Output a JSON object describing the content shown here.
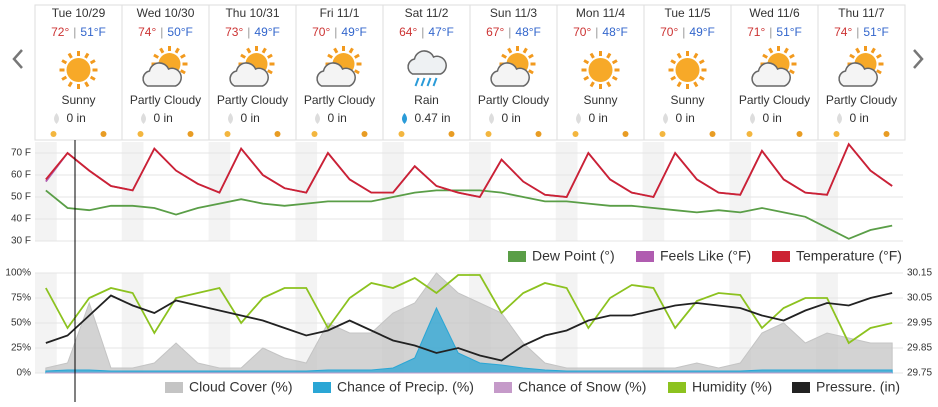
{
  "days": [
    {
      "name": "Tue 10/29",
      "high": "72°",
      "low": "51°F",
      "condition": "Sunny",
      "precip": "0 in"
    },
    {
      "name": "Wed 10/30",
      "high": "74°",
      "low": "50°F",
      "condition": "Partly Cloudy",
      "precip": "0 in"
    },
    {
      "name": "Thu 10/31",
      "high": "73°",
      "low": "49°F",
      "condition": "Partly Cloudy",
      "precip": "0 in"
    },
    {
      "name": "Fri 11/1",
      "high": "70°",
      "low": "49°F",
      "condition": "Partly Cloudy",
      "precip": "0 in"
    },
    {
      "name": "Sat 11/2",
      "high": "64°",
      "low": "47°F",
      "condition": "Rain",
      "precip": "0.47 in"
    },
    {
      "name": "Sun 11/3",
      "high": "67°",
      "low": "48°F",
      "condition": "Partly Cloudy",
      "precip": "0 in"
    },
    {
      "name": "Mon 11/4",
      "high": "70°",
      "low": "48°F",
      "condition": "Sunny",
      "precip": "0 in"
    },
    {
      "name": "Tue 11/5",
      "high": "70°",
      "low": "49°F",
      "condition": "Sunny",
      "precip": "0 in"
    },
    {
      "name": "Wed 11/6",
      "high": "71°",
      "low": "51°F",
      "condition": "Partly Cloudy",
      "precip": "0 in"
    },
    {
      "name": "Thu 11/7",
      "high": "74°",
      "low": "51°F",
      "condition": "Partly Cloudy",
      "precip": "0 in"
    }
  ],
  "chart_data": [
    {
      "type": "line",
      "categories": [
        null,
        null,
        null,
        null,
        null,
        null,
        null,
        null,
        null,
        null,
        null,
        null,
        null,
        null,
        null,
        null,
        null,
        null,
        null,
        null,
        null,
        null,
        null,
        null,
        null,
        null,
        null,
        null,
        null,
        null,
        null,
        null,
        null,
        null,
        null,
        null,
        null,
        null,
        null,
        null
      ],
      "ylim": [
        30,
        75
      ],
      "yticks": [
        {
          "value": 30,
          "label": "30 F"
        },
        {
          "value": 40,
          "label": "40 F"
        },
        {
          "value": 50,
          "label": "50 F"
        },
        {
          "value": 60,
          "label": "60 F"
        },
        {
          "value": 70,
          "label": "70 F"
        }
      ],
      "series": [
        {
          "name": "Dew Point (°)",
          "color": "#5a9e47",
          "type": "line",
          "values": [
            53,
            45,
            44,
            46,
            46,
            45,
            42,
            45,
            47,
            49,
            47,
            46,
            47,
            48,
            48,
            48,
            50,
            52,
            53,
            53,
            53,
            52,
            50,
            48,
            48,
            47,
            46,
            46,
            45,
            44,
            43,
            44,
            43,
            45,
            43,
            41,
            36,
            31,
            35,
            37
          ]
        },
        {
          "name": "Feels Like (°F)",
          "color": "#b05cb0",
          "type": "line",
          "values": [
            57,
            70,
            62,
            55,
            53,
            72,
            62,
            56,
            52,
            72,
            60,
            54,
            52,
            70,
            58,
            52,
            52,
            64,
            55,
            52,
            50,
            67,
            57,
            51,
            50,
            70,
            58,
            52,
            50,
            70,
            58,
            52,
            51,
            71,
            58,
            52,
            51,
            74,
            62,
            55
          ]
        },
        {
          "name": "Temperature (°F)",
          "color": "#cc2233",
          "type": "line",
          "values": [
            58,
            70,
            62,
            55,
            53,
            72,
            62,
            56,
            52,
            72,
            60,
            54,
            52,
            70,
            58,
            52,
            52,
            64,
            55,
            52,
            50,
            67,
            57,
            51,
            50,
            70,
            58,
            52,
            50,
            70,
            58,
            52,
            51,
            71,
            58,
            52,
            51,
            74,
            62,
            55
          ]
        }
      ]
    },
    {
      "type": "line",
      "categories": [
        null,
        null,
        null,
        null,
        null,
        null,
        null,
        null,
        null,
        null,
        null,
        null,
        null,
        null,
        null,
        null,
        null,
        null,
        null,
        null,
        null,
        null,
        null,
        null,
        null,
        null,
        null,
        null,
        null,
        null,
        null,
        null,
        null,
        null,
        null,
        null,
        null,
        null,
        null,
        null
      ],
      "ylim": [
        0,
        100
      ],
      "yticks": [
        {
          "value": 0,
          "label": "0%"
        },
        {
          "value": 25,
          "label": "25%"
        },
        {
          "value": 50,
          "label": "50%"
        },
        {
          "value": 75,
          "label": "75%"
        },
        {
          "value": 100,
          "label": "100%"
        }
      ],
      "y2lim": [
        29.75,
        30.15
      ],
      "y2ticks": [
        29.75,
        29.85,
        29.95,
        30.05,
        30.15
      ],
      "series": [
        {
          "name": "Cloud Cover (%)",
          "color": "#c4c4c4",
          "type": "area",
          "values": [
            5,
            10,
            70,
            5,
            5,
            10,
            30,
            10,
            5,
            5,
            25,
            15,
            10,
            50,
            40,
            40,
            60,
            70,
            100,
            80,
            70,
            60,
            30,
            10,
            5,
            5,
            5,
            5,
            5,
            5,
            10,
            5,
            10,
            40,
            50,
            30,
            40,
            35,
            30,
            30
          ]
        },
        {
          "name": "Chance of Precip. (%)",
          "color": "#2aa6d5",
          "type": "area",
          "values": [
            2,
            3,
            3,
            2,
            2,
            2,
            2,
            2,
            2,
            2,
            2,
            2,
            2,
            3,
            3,
            3,
            5,
            15,
            65,
            20,
            10,
            8,
            5,
            3,
            2,
            2,
            2,
            2,
            2,
            2,
            2,
            2,
            2,
            3,
            3,
            3,
            3,
            3,
            3,
            3
          ]
        },
        {
          "name": "Chance of Snow (%)",
          "color": "#c59ac9",
          "type": "area",
          "values": [
            0,
            0,
            0,
            0,
            0,
            0,
            0,
            0,
            0,
            0,
            0,
            0,
            0,
            0,
            0,
            0,
            0,
            0,
            0,
            0,
            0,
            0,
            0,
            0,
            0,
            0,
            0,
            0,
            0,
            0,
            0,
            0,
            0,
            0,
            0,
            0,
            0,
            0,
            0,
            0
          ]
        },
        {
          "name": "Humidity (%)",
          "color": "#8cc21f",
          "type": "line",
          "values": [
            85,
            45,
            75,
            85,
            80,
            40,
            75,
            80,
            85,
            50,
            75,
            85,
            85,
            45,
            75,
            90,
            85,
            95,
            80,
            98,
            98,
            60,
            80,
            90,
            85,
            45,
            75,
            88,
            85,
            45,
            72,
            80,
            78,
            45,
            65,
            75,
            75,
            30,
            45,
            50
          ]
        },
        {
          "name": "Pressure. (in)",
          "color": "#222222",
          "type": "line",
          "axis": "y2",
          "values": [
            29.87,
            29.9,
            29.98,
            30.06,
            30.02,
            29.99,
            30.04,
            30.02,
            30,
            29.98,
            29.96,
            29.93,
            29.9,
            29.92,
            29.96,
            29.92,
            29.88,
            29.86,
            29.83,
            29.85,
            29.82,
            29.8,
            29.86,
            29.9,
            29.92,
            29.96,
            29.98,
            29.98,
            30,
            30.02,
            30.03,
            30.02,
            30.01,
            29.98,
            29.96,
            30,
            30.03,
            30.02,
            30.05,
            30.07
          ]
        }
      ]
    }
  ]
}
